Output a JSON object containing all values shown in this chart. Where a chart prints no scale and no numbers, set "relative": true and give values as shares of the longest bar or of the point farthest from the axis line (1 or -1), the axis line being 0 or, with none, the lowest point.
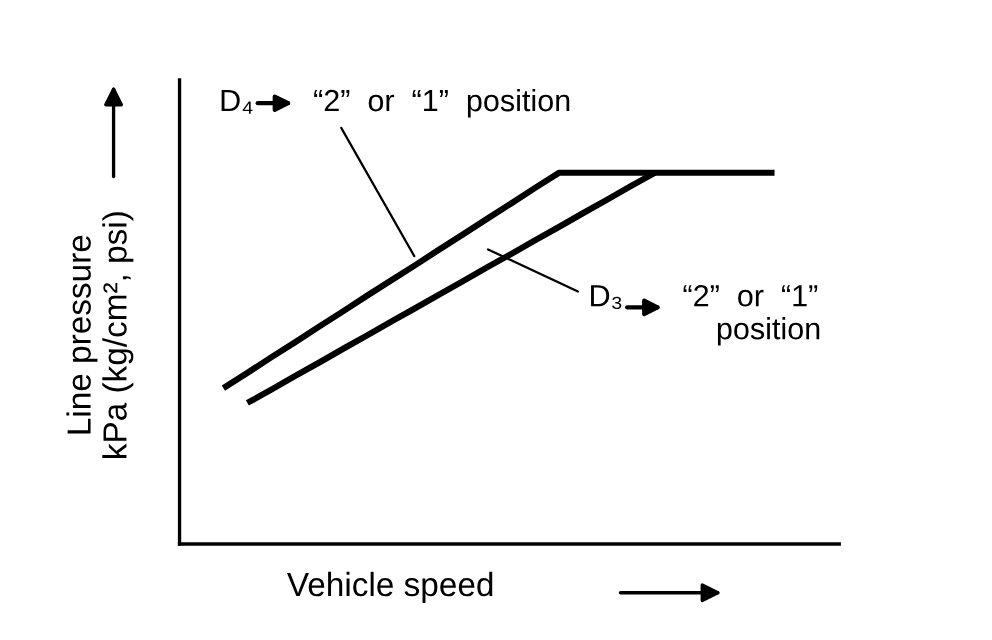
{
  "chart_data": {
    "type": "line",
    "relative": true,
    "xlabel": "Vehicle speed",
    "ylabel": "Line pressure\nkPa (kg/cm², psi)",
    "categories": [
      null,
      null,
      null,
      null,
      null,
      null,
      null,
      null,
      null,
      null,
      null,
      null,
      null,
      null,
      null,
      null,
      null,
      null,
      null,
      null,
      null,
      null,
      null,
      null
    ],
    "series": [
      {
        "color": "#000000",
        "values": [
          0.42,
          0.461,
          0.503,
          0.544,
          0.586,
          0.627,
          0.669,
          0.71,
          0.751,
          0.793,
          0.834,
          0.876,
          0.917,
          0.959,
          1.0,
          1.0,
          1.0,
          1.0,
          1.0,
          1.0,
          1.0,
          1.0,
          1.0,
          1.0
        ]
      },
      {
        "color": "#000000",
        "values": [
          null,
          0.38,
          0.416,
          0.453,
          0.489,
          0.526,
          0.562,
          0.599,
          0.635,
          0.672,
          0.708,
          0.745,
          0.781,
          0.818,
          0.854,
          0.891,
          0.927,
          0.964,
          1.0,
          null,
          null,
          null,
          null,
          null
        ]
      }
    ],
    "annotations": [
      "D₄       “2”  or  “1”  position",
      "D₃       “2”  or  “1”\n               position"
    ],
    "marker": "none",
    "line_style": "solid"
  }
}
